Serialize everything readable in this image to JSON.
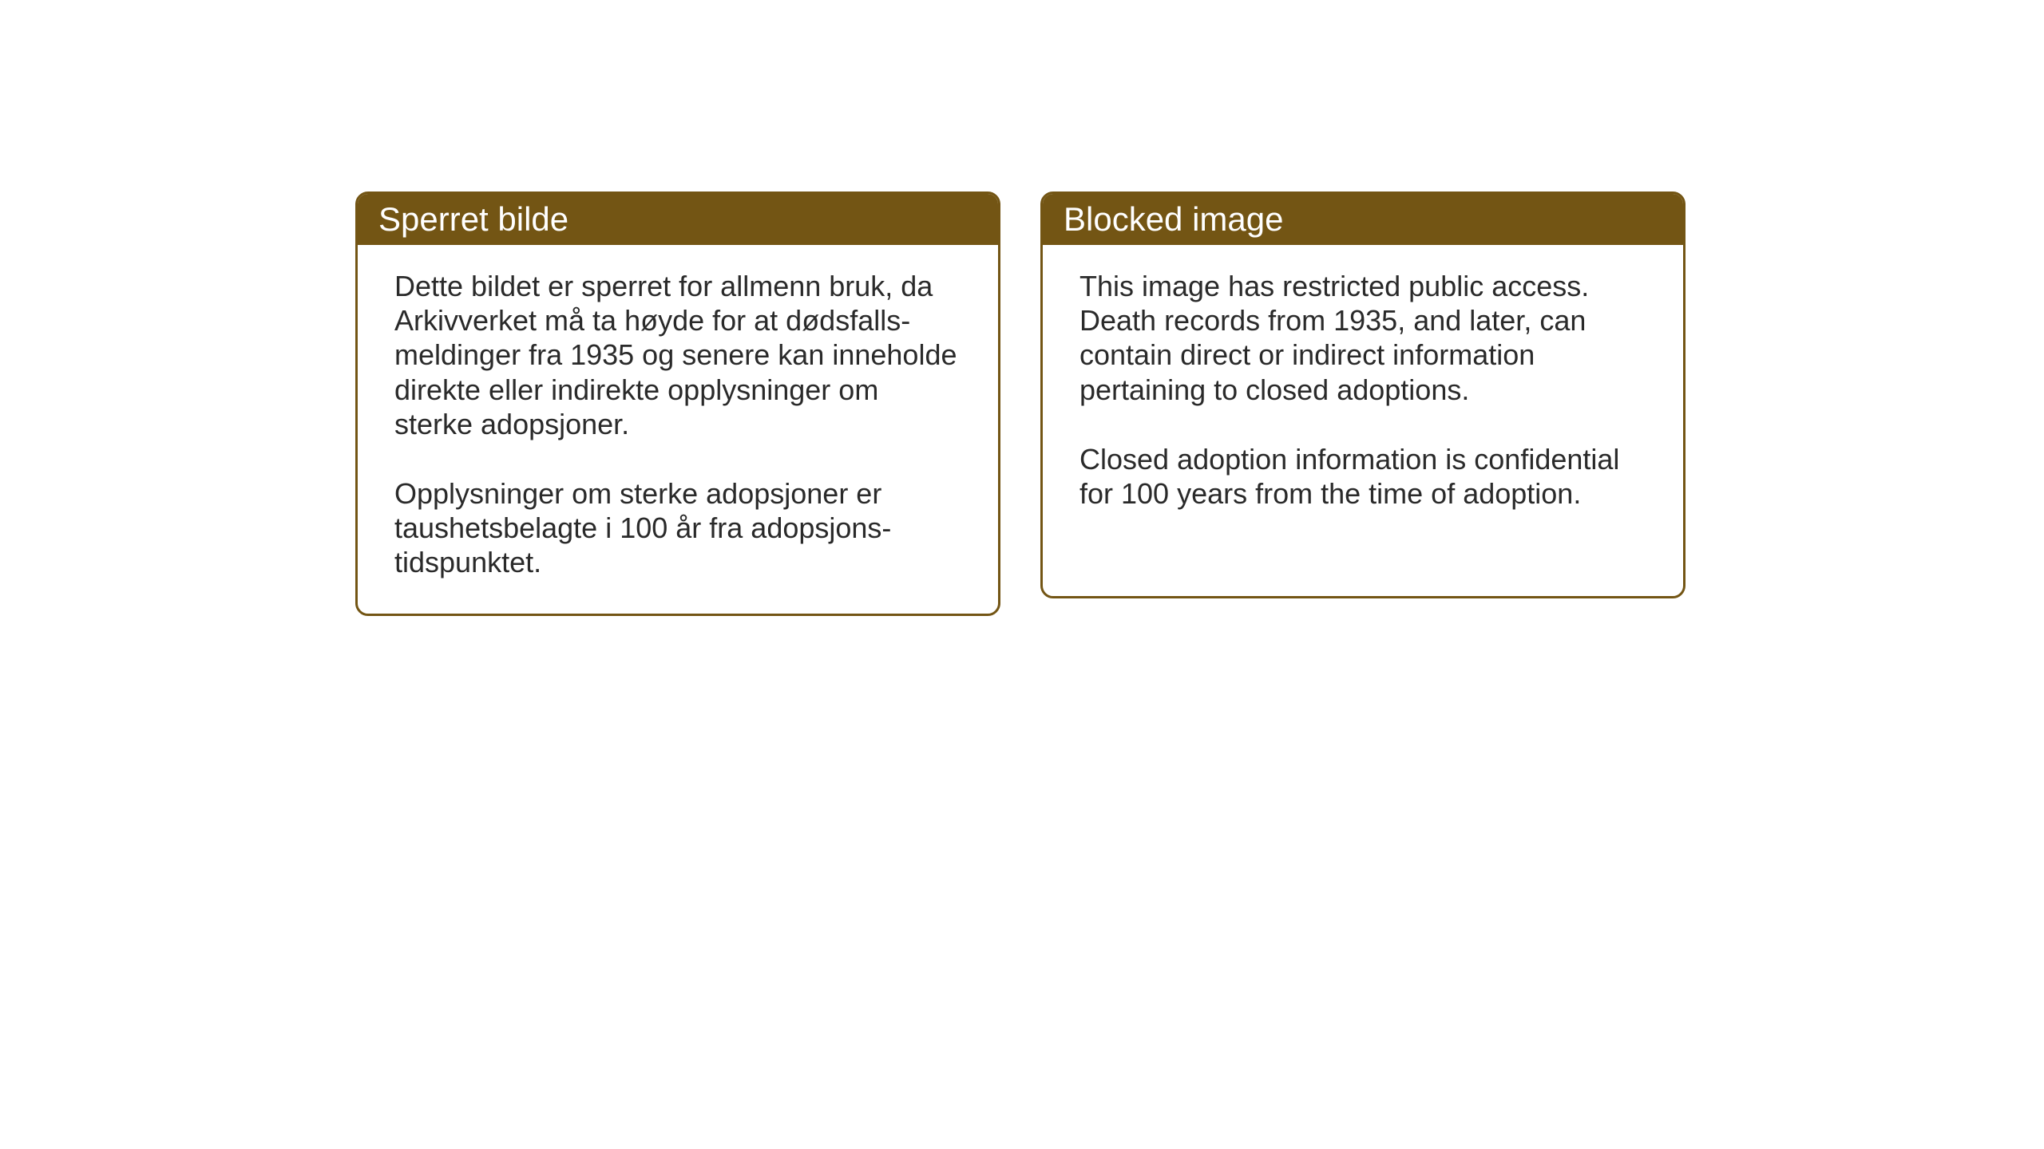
{
  "cards": {
    "norwegian": {
      "title": "Sperret bilde",
      "paragraph1": "Dette bildet er sperret for allmenn bruk, da Arkivverket må ta høyde for at dødsfalls-meldinger fra 1935 og senere kan inneholde direkte eller indirekte opplysninger om sterke adopsjoner.",
      "paragraph2": "Opplysninger om sterke adopsjoner er taushetsbelagte i 100 år fra adopsjons-tidspunktet."
    },
    "english": {
      "title": "Blocked image",
      "paragraph1": "This image has restricted public access. Death records from 1935, and later, can contain direct or indirect information pertaining to closed adoptions.",
      "paragraph2": "Closed adoption information is confidential for 100 years from the time of adoption."
    }
  },
  "styling": {
    "header_bg_color": "#735514",
    "header_text_color": "#ffffff",
    "border_color": "#735514",
    "body_text_color": "#2a2a2a",
    "background_color": "#ffffff",
    "title_fontsize": 42,
    "body_fontsize": 36,
    "border_radius": 16,
    "border_width": 3
  }
}
